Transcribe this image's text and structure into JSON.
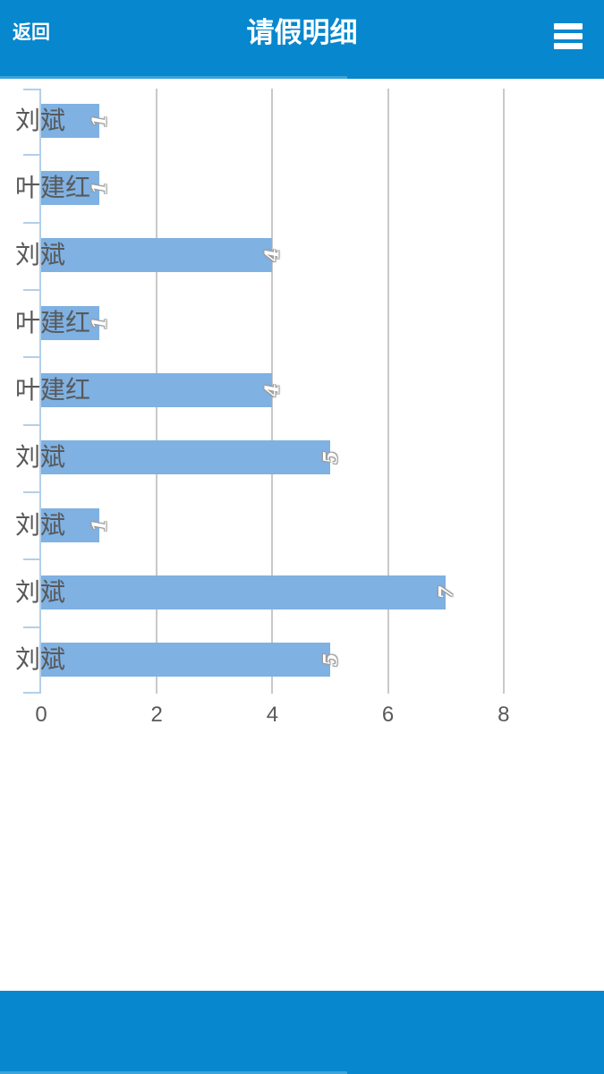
{
  "header": {
    "back_label": "返回",
    "title": "请假明细",
    "menu_icon": "hamburger-menu-icon",
    "colors": {
      "bg": "#0787ce",
      "progress_edge": "#3ba4da"
    }
  },
  "chart_data": {
    "type": "bar",
    "orientation": "horizontal",
    "title": "",
    "categories": [
      "刘斌",
      "叶建红",
      "刘斌",
      "叶建红",
      "叶建红",
      "刘斌",
      "刘斌",
      "刘斌",
      "刘斌"
    ],
    "values": [
      1,
      1,
      4,
      1,
      4,
      5,
      1,
      7,
      5
    ],
    "x_ticks": [
      "0",
      "2",
      "4",
      "6",
      "8"
    ],
    "xlim": [
      0,
      9.7
    ],
    "grid": true,
    "legend": false,
    "value_labels": "rotated-90-at-bar-end",
    "colors": {
      "bar": "#7fb1e3",
      "grid": "#c9c9c9",
      "axis": "#b3cfe9",
      "text": "#58595a",
      "value_label": "#ffffff",
      "value_label_outline": "#9b9b9b"
    }
  },
  "footer": {
    "colors": {
      "bg": "#0787ce",
      "progress_edge": "#3ba4da"
    }
  }
}
